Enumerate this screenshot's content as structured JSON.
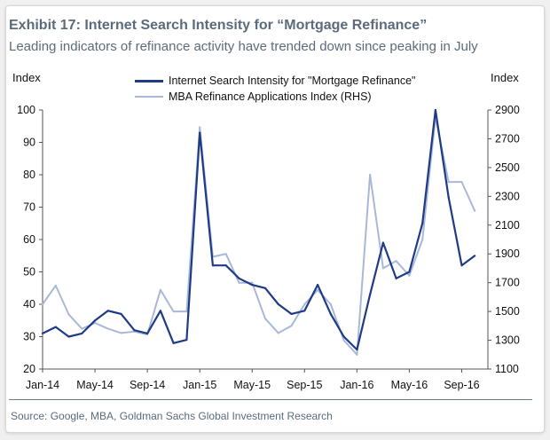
{
  "colors": {
    "search_series": "#1f3b87",
    "mba_series": "#a9b8d8",
    "title": "#5b6b7c"
  },
  "header": {
    "title": "Exhibit 17: Internet Search Intensity for “Mortgage Refinance”",
    "subtitle": "Leading indicators of refinance activity have trended down since peaking in July"
  },
  "footer": {
    "source": "Source: Google, MBA, Goldman Sachs Global Investment Research"
  },
  "chart_data": {
    "type": "line",
    "title": "Exhibit 17: Internet Search Intensity for “Mortgage Refinance”",
    "subtitle": "Leading indicators of refinance activity have trended down since peaking in July",
    "y_left_label": "Index",
    "y_right_label": "Index",
    "y_left_range": [
      20,
      100
    ],
    "y_left_ticks": [
      20,
      30,
      40,
      50,
      60,
      70,
      80,
      90,
      100
    ],
    "y_right_range": [
      1100,
      2900
    ],
    "y_right_ticks": [
      1100,
      1300,
      1500,
      1700,
      1900,
      2100,
      2300,
      2500,
      2700,
      2900
    ],
    "x_range": [
      "2014-01",
      "2016-11"
    ],
    "x_ticks": [
      {
        "label": "Jan-14",
        "x": "2014-01"
      },
      {
        "label": "May-14",
        "x": "2014-05"
      },
      {
        "label": "Sep-14",
        "x": "2014-09"
      },
      {
        "label": "Jan-15",
        "x": "2015-01"
      },
      {
        "label": "May-15",
        "x": "2015-05"
      },
      {
        "label": "Sep-15",
        "x": "2015-09"
      },
      {
        "label": "Jan-16",
        "x": "2016-01"
      },
      {
        "label": "May-16",
        "x": "2016-05"
      },
      {
        "label": "Sep-16",
        "x": "2016-09"
      }
    ],
    "grid": false,
    "legend_position": "top-center",
    "series": [
      {
        "name": "Internet Search Intensity for \"Mortgage Refinance\"",
        "axis": "left",
        "x": [
          "2014-01",
          "2014-02",
          "2014-03",
          "2014-04",
          "2014-05",
          "2014-06",
          "2014-07",
          "2014-08",
          "2014-09",
          "2014-10",
          "2014-11",
          "2014-12",
          "2015-01",
          "2015-02",
          "2015-03",
          "2015-04",
          "2015-05",
          "2015-06",
          "2015-07",
          "2015-08",
          "2015-09",
          "2015-10",
          "2015-11",
          "2015-12",
          "2016-01",
          "2016-02",
          "2016-03",
          "2016-04",
          "2016-05",
          "2016-06",
          "2016-07",
          "2016-08",
          "2016-09",
          "2016-10"
        ],
        "values": [
          31,
          33,
          30,
          31,
          35,
          38,
          37,
          32,
          31,
          38,
          28,
          29,
          93,
          52,
          52,
          48,
          46,
          45,
          40,
          37,
          38,
          46,
          37,
          30,
          26,
          43,
          59,
          48,
          50,
          65,
          100,
          73,
          52,
          55
        ]
      },
      {
        "name": "MBA Refinance Applications Index (RHS)",
        "axis": "right",
        "x": [
          "2014-01",
          "2014-02",
          "2014-03",
          "2014-04",
          "2014-05",
          "2014-06",
          "2014-07",
          "2014-08",
          "2014-09",
          "2014-10",
          "2014-11",
          "2014-12",
          "2015-01",
          "2015-02",
          "2015-03",
          "2015-04",
          "2015-05",
          "2015-06",
          "2015-07",
          "2015-08",
          "2015-09",
          "2015-10",
          "2015-11",
          "2015-12",
          "2016-01",
          "2016-02",
          "2016-03",
          "2016-04",
          "2016-05",
          "2016-06",
          "2016-07",
          "2016-08",
          "2016-09",
          "2016-10"
        ],
        "values": [
          1550,
          1680,
          1480,
          1380,
          1420,
          1380,
          1350,
          1360,
          1340,
          1650,
          1500,
          1500,
          2780,
          1880,
          1900,
          1700,
          1700,
          1450,
          1350,
          1400,
          1550,
          1650,
          1550,
          1300,
          1200,
          2450,
          1800,
          1850,
          1750,
          2000,
          2850,
          2400,
          2400,
          2200
        ]
      }
    ]
  }
}
